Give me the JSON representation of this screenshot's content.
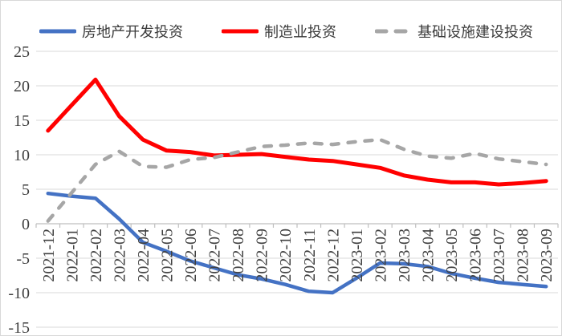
{
  "chart_data": {
    "type": "line",
    "title": "",
    "legend_position": "top",
    "grid": "horizontal",
    "ylim": [
      -15,
      25
    ],
    "ytick_step": 5,
    "x_axis_crosses_at": 0,
    "categories": [
      "2021-12",
      "2022-01",
      "2022-02",
      "2022-03",
      "2022-04",
      "2022-05",
      "2022-06",
      "2022-07",
      "2022-08",
      "2022-09",
      "2022-10",
      "2022-11",
      "2022-12",
      "2023-01",
      "2023-02",
      "2023-03",
      "2023-04",
      "2023-05",
      "2023-06",
      "2023-07",
      "2023-08",
      "2023-09"
    ],
    "series": [
      {
        "key": "real-estate",
        "name": "房地产开发投资",
        "color": "#4472C4",
        "style": "solid",
        "values": [
          4.4,
          4.0,
          3.7,
          0.7,
          -2.7,
          -4.0,
          -5.4,
          -6.4,
          -7.4,
          -8.0,
          -8.8,
          -9.8,
          -10.0,
          -7.9,
          -5.7,
          -5.8,
          -6.2,
          -7.2,
          -7.9,
          -8.5,
          -8.8,
          -9.1
        ]
      },
      {
        "key": "manufacturing",
        "name": "制造业投资",
        "color": "#FF0000",
        "style": "solid",
        "values": [
          13.5,
          17.2,
          20.9,
          15.6,
          12.2,
          10.6,
          10.4,
          9.9,
          10.0,
          10.1,
          9.7,
          9.3,
          9.1,
          8.6,
          8.1,
          7.0,
          6.4,
          6.0,
          6.0,
          5.7,
          5.9,
          6.2
        ]
      },
      {
        "key": "infrastructure",
        "name": "基础设施建设投资",
        "color": "#A6A6A6",
        "style": "dashed",
        "values": [
          0.4,
          4.5,
          8.6,
          10.5,
          8.3,
          8.2,
          9.3,
          9.6,
          10.4,
          11.2,
          11.4,
          11.7,
          11.5,
          11.9,
          12.2,
          10.8,
          9.8,
          9.5,
          10.2,
          9.4,
          9.0,
          8.6
        ]
      }
    ]
  },
  "colors": {
    "background": "#FFFFFF",
    "frame_border": "#D8D8D8",
    "gridline": "#D9D9D9",
    "axis_line": "#BFBFBF",
    "tick_text": "#404040",
    "legend_text": "#3B3B3B"
  }
}
